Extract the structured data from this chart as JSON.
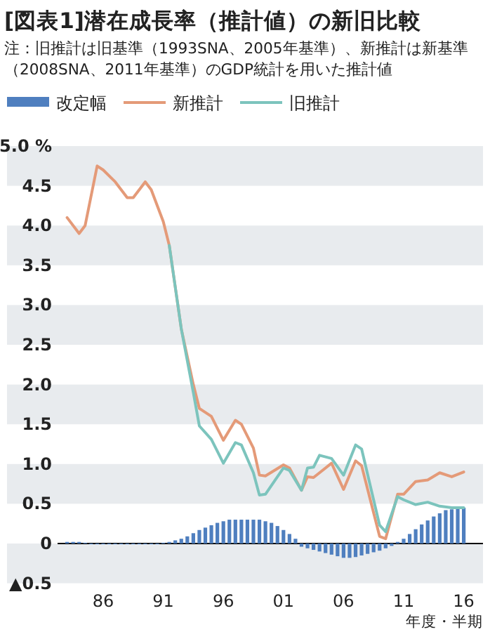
{
  "chart_data": {
    "type": "line",
    "title": "[図表1]潜在成長率（推計値）の新旧比較",
    "subtitle": "注：旧推計は旧基準（1993SNA、2005年基準）、新推計は新基準（2008SNA、2011年基準）のGDP統計を用いた推計値",
    "xlabel": "年度・半期",
    "xlim": [
      1978,
      2017.6
    ],
    "xticks": [
      {
        "value": 1986,
        "label": "86"
      },
      {
        "value": 1991,
        "label": "91"
      },
      {
        "value": 1996,
        "label": "96"
      },
      {
        "value": 2001,
        "label": "01"
      },
      {
        "value": 2006,
        "label": "06"
      },
      {
        "value": 2011,
        "label": "11"
      },
      {
        "value": 2016,
        "label": "16"
      }
    ],
    "ylim": [
      -0.5,
      5.0
    ],
    "yticks": [
      {
        "value": -0.5,
        "label": "▲0.5"
      },
      0,
      {
        "value": 0.5,
        "label": "0.5"
      },
      {
        "value": 1,
        "label": "1.0"
      },
      {
        "value": 1.5,
        "label": "1.5"
      },
      {
        "value": 2,
        "label": "2.0"
      },
      {
        "value": 2.5,
        "label": "2.5"
      },
      {
        "value": 3,
        "label": "3.0"
      },
      {
        "value": 3.5,
        "label": "3.5"
      },
      {
        "value": 4,
        "label": "4.0"
      },
      {
        "value": 4.5,
        "label": "4.5"
      },
      {
        "value": 5,
        "label": "5.0 %"
      }
    ],
    "legend": "top left",
    "bands": [
      {
        "axis": "y",
        "from": -0.5,
        "to": 0,
        "color": "#e8ebee"
      },
      {
        "axis": "y",
        "from": 0.5,
        "to": 1.0,
        "color": "#e8ebee"
      },
      {
        "axis": "y",
        "from": 1.5,
        "to": 2.0,
        "color": "#e8ebee"
      },
      {
        "axis": "y",
        "from": 2.5,
        "to": 3.0,
        "color": "#e8ebee"
      },
      {
        "axis": "y",
        "from": 3.5,
        "to": 4.0,
        "color": "#e8ebee"
      },
      {
        "axis": "y",
        "from": 4.5,
        "to": 5.0,
        "color": "#e8ebee"
      }
    ],
    "ref_lines": [
      {
        "axis": "y",
        "value": 0,
        "color": "#000000"
      }
    ],
    "series": [
      {
        "name": "改定幅",
        "type": "bar",
        "color": "#4f7fbf",
        "x": [
          1983,
          1983.5,
          1984,
          1984.5,
          1985,
          1985.5,
          1986,
          1986.5,
          1987,
          1987.5,
          1988,
          1988.5,
          1989,
          1989.5,
          1990,
          1990.5,
          1991,
          1991.5,
          1992,
          1992.5,
          1993,
          1993.5,
          1994,
          1994.5,
          1995,
          1995.5,
          1996,
          1996.5,
          1997,
          1997.5,
          1998,
          1998.5,
          1999,
          1999.5,
          2000,
          2000.5,
          2001,
          2001.5,
          2002,
          2002.5,
          2003,
          2003.5,
          2004,
          2004.5,
          2005,
          2005.5,
          2006,
          2006.5,
          2007,
          2007.5,
          2008,
          2008.5,
          2009,
          2009.5,
          2010,
          2010.5,
          2011,
          2011.5,
          2012,
          2012.5,
          2013,
          2013.5,
          2014,
          2014.5,
          2015,
          2015.5,
          2016
        ],
        "values": [
          0.02,
          0.02,
          0.02,
          0.01,
          -0.01,
          -0.01,
          -0.01,
          -0.01,
          -0.01,
          -0.01,
          -0.01,
          -0.01,
          -0.01,
          -0.01,
          -0.01,
          -0.01,
          0.01,
          0.02,
          0.04,
          0.06,
          0.09,
          0.13,
          0.17,
          0.2,
          0.23,
          0.26,
          0.28,
          0.3,
          0.3,
          0.3,
          0.3,
          0.3,
          0.3,
          0.28,
          0.26,
          0.22,
          0.17,
          0.12,
          0.06,
          -0.04,
          -0.06,
          -0.08,
          -0.1,
          -0.12,
          -0.14,
          -0.16,
          -0.18,
          -0.18,
          -0.17,
          -0.15,
          -0.13,
          -0.11,
          -0.09,
          -0.06,
          -0.03,
          0.02,
          0.06,
          0.12,
          0.18,
          0.24,
          0.29,
          0.34,
          0.38,
          0.42,
          0.43,
          0.44,
          0.45
        ]
      },
      {
        "name": "新推計",
        "color": "#e49a78",
        "x": [
          1983,
          1984,
          1984.5,
          1985.5,
          1986,
          1987,
          1987.5,
          1988,
          1988.5,
          1989.5,
          1990,
          1991,
          1991.5,
          1992.5,
          1993.5,
          1994,
          1995,
          1996,
          1997,
          1997.5,
          1998.5,
          1999,
          1999.5,
          2001,
          2001.5,
          2002.5,
          2003,
          2003.5,
          2004,
          2005,
          2006,
          2007,
          2007.5,
          2009,
          2009.5,
          2010.5,
          2011,
          2012,
          2013,
          2014,
          2015,
          2016
        ],
        "values": [
          4.1,
          3.9,
          4.0,
          4.75,
          4.7,
          4.55,
          4.45,
          4.35,
          4.35,
          4.55,
          4.45,
          4.05,
          3.75,
          2.7,
          2.0,
          1.7,
          1.6,
          1.3,
          1.55,
          1.5,
          1.2,
          0.86,
          0.85,
          0.99,
          0.95,
          0.67,
          0.84,
          0.83,
          0.89,
          1.01,
          0.68,
          1.04,
          0.98,
          0.09,
          0.06,
          0.62,
          0.62,
          0.78,
          0.8,
          0.89,
          0.84,
          0.9
        ]
      },
      {
        "name": "旧推計",
        "color": "#7cc4bd",
        "x": [
          1991.5,
          1992.5,
          1993.5,
          1994,
          1995,
          1996,
          1997,
          1997.5,
          1998.5,
          1999,
          1999.5,
          2001,
          2001.5,
          2002.5,
          2003,
          2003.5,
          2004,
          2005,
          2006,
          2007,
          2007.5,
          2009,
          2009.5,
          2010.5,
          2011,
          2012,
          2013,
          2014,
          2015,
          2016
        ],
        "values": [
          3.75,
          2.7,
          1.9,
          1.48,
          1.31,
          1.01,
          1.27,
          1.24,
          0.89,
          0.61,
          0.62,
          0.95,
          0.92,
          0.67,
          0.95,
          0.96,
          1.11,
          1.07,
          0.86,
          1.24,
          1.19,
          0.23,
          0.15,
          0.59,
          0.55,
          0.49,
          0.52,
          0.47,
          0.45,
          0.45
        ]
      }
    ]
  }
}
